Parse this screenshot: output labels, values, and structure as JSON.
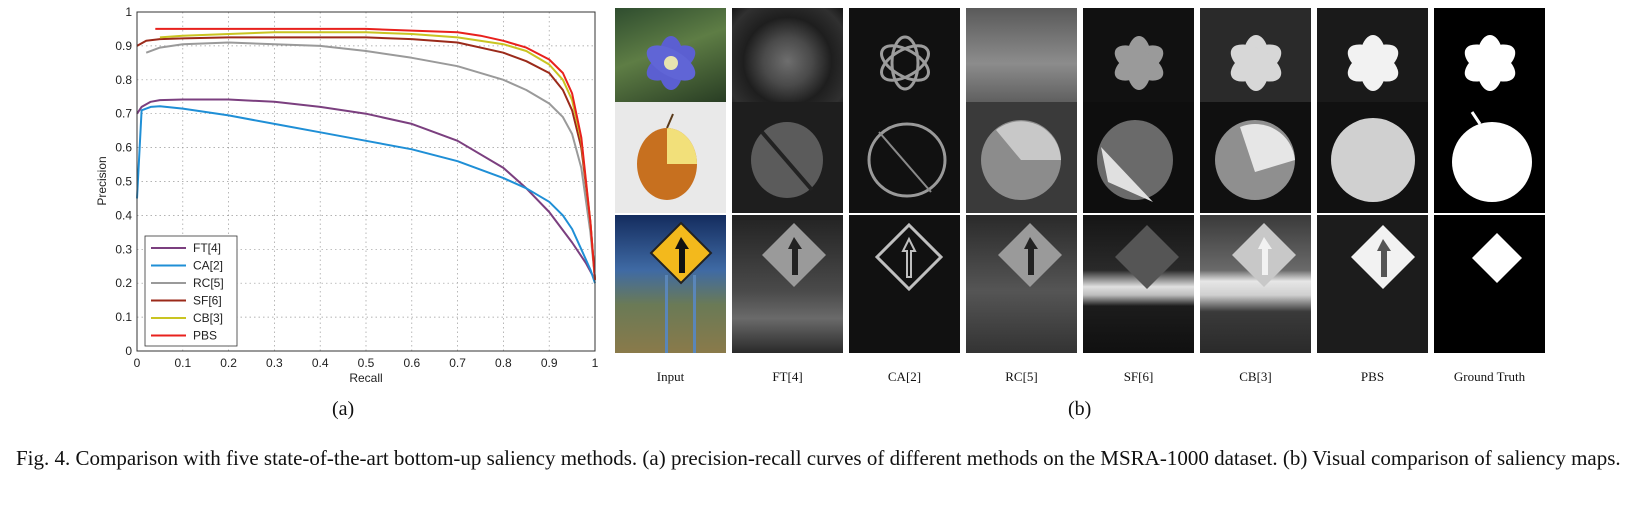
{
  "figure": {
    "caption": "Fig. 4.   Comparison with five state-of-the-art bottom-up saliency methods. (a) precision-recall curves of different methods on the MSRA-1000 dataset. (b) Visual comparison of saliency maps.",
    "panel_a_label": "(a)",
    "panel_b_label": "(b)"
  },
  "chart_data": {
    "type": "line",
    "xlabel": "Recall",
    "ylabel": "Precision",
    "xlim": [
      0,
      1
    ],
    "ylim": [
      0,
      1
    ],
    "xticks": [
      "0",
      "0.1",
      "0.2",
      "0.3",
      "0.4",
      "0.5",
      "0.6",
      "0.7",
      "0.8",
      "0.9",
      "1"
    ],
    "yticks": [
      "0",
      "0.1",
      "0.2",
      "0.3",
      "0.4",
      "0.5",
      "0.6",
      "0.7",
      "0.8",
      "0.9",
      "1"
    ],
    "grid": true,
    "legend_position": "bottom-left",
    "series": [
      {
        "name": "FT[4]",
        "color": "#7b3f7f",
        "x": [
          0.0,
          0.01,
          0.03,
          0.05,
          0.1,
          0.2,
          0.3,
          0.4,
          0.5,
          0.6,
          0.7,
          0.8,
          0.85,
          0.9,
          0.95,
          0.98,
          1.0
        ],
        "y": [
          0.7,
          0.72,
          0.735,
          0.74,
          0.742,
          0.742,
          0.735,
          0.72,
          0.7,
          0.67,
          0.62,
          0.54,
          0.48,
          0.41,
          0.32,
          0.26,
          0.21
        ]
      },
      {
        "name": "CA[2]",
        "color": "#1f8fd6",
        "x": [
          0.0,
          0.01,
          0.03,
          0.05,
          0.1,
          0.2,
          0.3,
          0.4,
          0.5,
          0.6,
          0.7,
          0.8,
          0.85,
          0.9,
          0.93,
          0.95,
          0.97,
          0.99,
          1.0
        ],
        "y": [
          0.45,
          0.71,
          0.72,
          0.722,
          0.715,
          0.695,
          0.67,
          0.645,
          0.62,
          0.595,
          0.56,
          0.51,
          0.48,
          0.44,
          0.4,
          0.36,
          0.3,
          0.24,
          0.2
        ]
      },
      {
        "name": "RC[5]",
        "color": "#9a9a9a",
        "x": [
          0.02,
          0.05,
          0.1,
          0.2,
          0.3,
          0.4,
          0.5,
          0.6,
          0.7,
          0.8,
          0.85,
          0.9,
          0.93,
          0.95,
          0.97,
          0.99,
          1.0
        ],
        "y": [
          0.88,
          0.895,
          0.905,
          0.91,
          0.905,
          0.9,
          0.885,
          0.865,
          0.84,
          0.8,
          0.77,
          0.73,
          0.69,
          0.64,
          0.54,
          0.35,
          0.21
        ]
      },
      {
        "name": "SF[6]",
        "color": "#9b2a1a",
        "x": [
          0.0,
          0.02,
          0.05,
          0.1,
          0.2,
          0.3,
          0.4,
          0.5,
          0.6,
          0.7,
          0.8,
          0.85,
          0.9,
          0.93,
          0.95,
          0.97,
          0.99,
          1.0
        ],
        "y": [
          0.9,
          0.915,
          0.92,
          0.922,
          0.925,
          0.925,
          0.925,
          0.925,
          0.92,
          0.91,
          0.88,
          0.855,
          0.82,
          0.77,
          0.71,
          0.6,
          0.38,
          0.21
        ]
      },
      {
        "name": "CB[3]",
        "color": "#c9c422",
        "x": [
          0.05,
          0.1,
          0.2,
          0.3,
          0.4,
          0.5,
          0.6,
          0.7,
          0.8,
          0.85,
          0.9,
          0.93,
          0.95,
          0.97,
          0.99,
          1.0
        ],
        "y": [
          0.925,
          0.93,
          0.935,
          0.94,
          0.94,
          0.94,
          0.935,
          0.925,
          0.905,
          0.885,
          0.845,
          0.8,
          0.74,
          0.62,
          0.38,
          0.21
        ]
      },
      {
        "name": "PBS",
        "color": "#e8211d",
        "x": [
          0.04,
          0.1,
          0.2,
          0.3,
          0.4,
          0.5,
          0.6,
          0.7,
          0.75,
          0.8,
          0.85,
          0.9,
          0.93,
          0.95,
          0.97,
          0.99,
          1.0
        ],
        "y": [
          0.95,
          0.95,
          0.95,
          0.95,
          0.95,
          0.95,
          0.945,
          0.94,
          0.93,
          0.915,
          0.895,
          0.86,
          0.82,
          0.76,
          0.63,
          0.38,
          0.21
        ]
      }
    ]
  },
  "panel_b": {
    "rows": [
      "flower",
      "pear",
      "road-sign"
    ],
    "columns": [
      "Input",
      "FT[4]",
      "CA[2]",
      "RC[5]",
      "SF[6]",
      "CB[3]",
      "PBS",
      "Ground Truth"
    ]
  }
}
